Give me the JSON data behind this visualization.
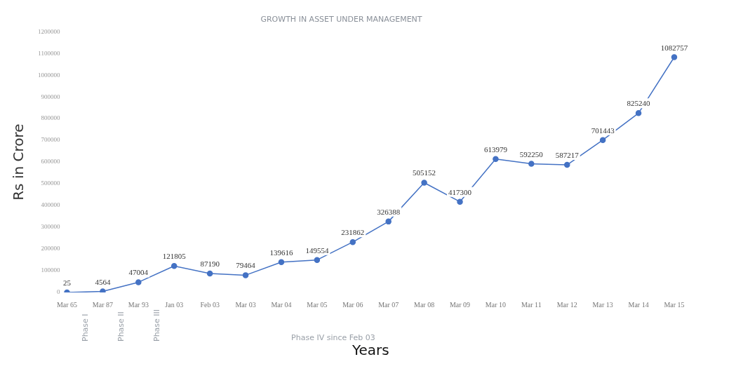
{
  "chart_data": {
    "type": "line",
    "title": "GROWTH IN ASSET UNDER MANAGEMENT",
    "xlabel": "Years",
    "ylabel": "Rs in Crore",
    "categories": [
      "Mar 65",
      "Mar 87",
      "Mar 93",
      "Jan 03",
      "Feb 03",
      "Mar 03",
      "Mar 04",
      "Mar 05",
      "Mar 06",
      "Mar 07",
      "Mar 08",
      "Mar 09",
      "Mar 10",
      "Mar 11",
      "Mar 12",
      "Mar 13",
      "Mar 14",
      "Mar 15"
    ],
    "series": [
      {
        "color": "#4472c4",
        "values": [
          25,
          4564,
          47004,
          121805,
          87190,
          79464,
          139616,
          149554,
          231862,
          326388,
          505152,
          417300,
          613979,
          592250,
          587217,
          701443,
          825240,
          1082757
        ]
      }
    ],
    "ylim": [
      0,
      1200000
    ],
    "yticks": [
      0,
      100000,
      200000,
      300000,
      400000,
      500000,
      600000,
      700000,
      800000,
      900000,
      1000000,
      1100000,
      1200000
    ],
    "grid": false,
    "marker": "circle",
    "line_style": "solid",
    "data_labels": true,
    "annotations": [
      "Phase I",
      "Phase II",
      "Phase III",
      "Phase IV since Feb 03"
    ]
  }
}
